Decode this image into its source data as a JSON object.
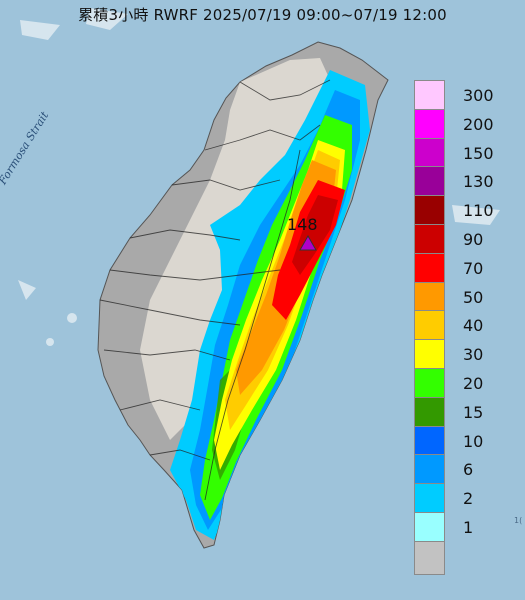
{
  "title": "累積3小時 RWRF 2025/07/19 09:00~07/19 12:00",
  "strait_label": "Formosa Strait",
  "peak": {
    "value": "148",
    "marker_color": "#b000c8"
  },
  "corner_label": "1(",
  "colors": {
    "sea": "#9ec3da",
    "land": "#a9a9a9",
    "mountain_terrain": "#f3eee4"
  },
  "legend": [
    {
      "label": "300",
      "color": "#ffc8ff"
    },
    {
      "label": "200",
      "color": "#ff00ff"
    },
    {
      "label": "150",
      "color": "#cc00cc"
    },
    {
      "label": "130",
      "color": "#990099"
    },
    {
      "label": "110",
      "color": "#990000"
    },
    {
      "label": "90",
      "color": "#cc0000"
    },
    {
      "label": "70",
      "color": "#ff0000"
    },
    {
      "label": "50",
      "color": "#ff9900"
    },
    {
      "label": "40",
      "color": "#ffcc00"
    },
    {
      "label": "30",
      "color": "#ffff00"
    },
    {
      "label": "20",
      "color": "#33ff00"
    },
    {
      "label": "15",
      "color": "#339900"
    },
    {
      "label": "10",
      "color": "#0066ff"
    },
    {
      "label": "6",
      "color": "#0099ff"
    },
    {
      "label": "2",
      "color": "#00ccff"
    },
    {
      "label": "1",
      "color": "#99ffff"
    },
    {
      "label": "",
      "color": "#c2c2c2"
    }
  ]
}
